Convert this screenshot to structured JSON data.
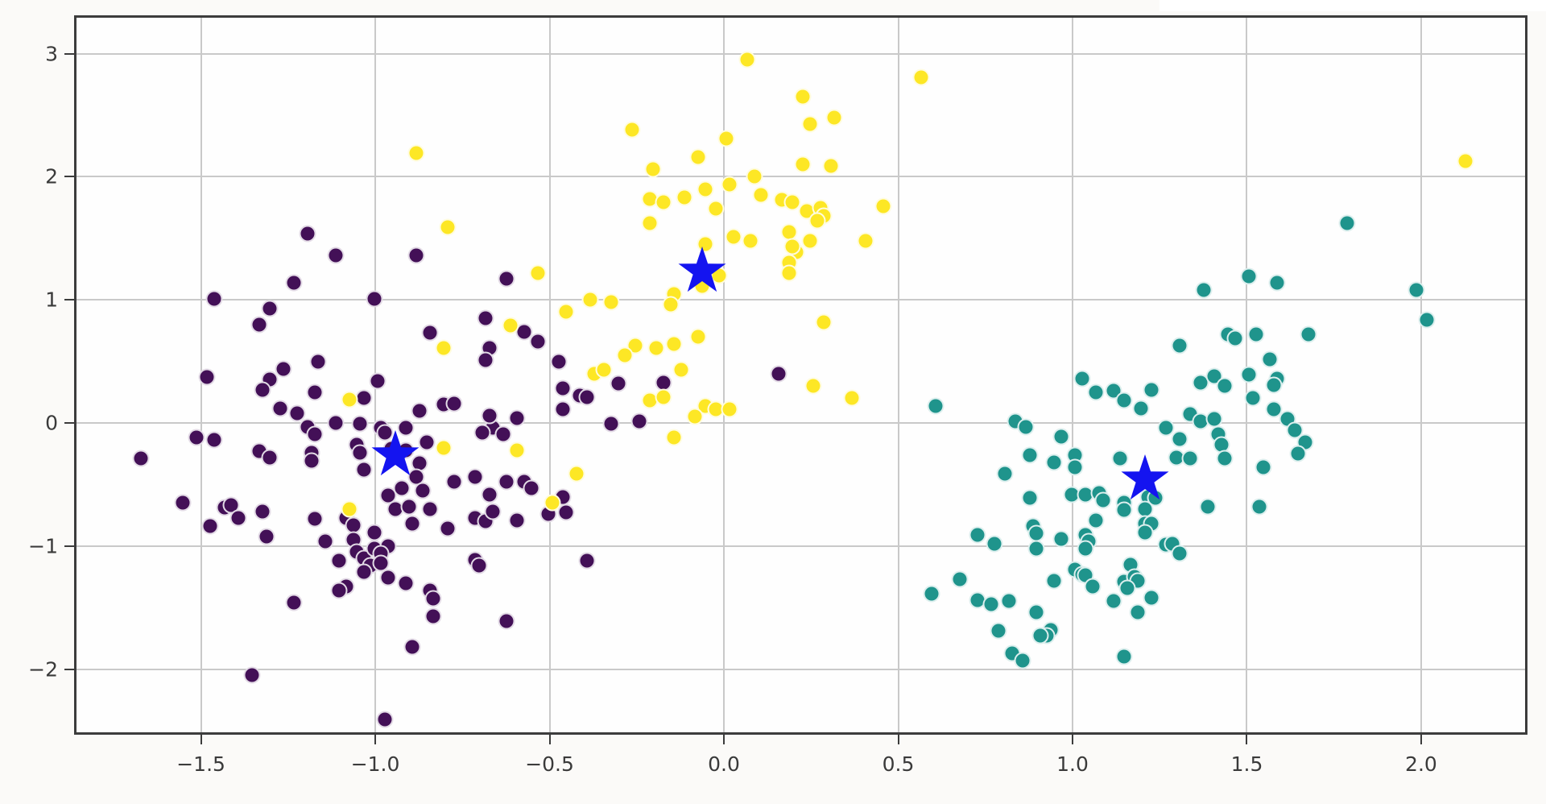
{
  "chart_data": {
    "type": "scatter",
    "title": "",
    "xlabel": "",
    "ylabel": "",
    "grid": true,
    "xlim": [
      -1.864,
      2.305
    ],
    "ylim": [
      -2.533,
      3.312
    ],
    "x_ticks": [
      -1.5,
      -1.0,
      -0.5,
      0.0,
      0.5,
      1.0,
      1.5,
      2.0
    ],
    "x_tick_labels": [
      "−1.5",
      "−1.0",
      "−0.5",
      "0.0",
      "0.5",
      "1.0",
      "1.5",
      "2.0"
    ],
    "y_ticks": [
      -2,
      -1,
      0,
      1,
      2,
      3
    ],
    "y_tick_labels": [
      "−2",
      "−1",
      "0",
      "1",
      "2",
      "3"
    ],
    "grid_color": "#c9c9c9",
    "spine_color": "#3c3c3c",
    "tick_label_color": "#3a3a3a",
    "series": [
      {
        "name": "cluster-0-purple",
        "color": "#431057",
        "points": [
          [
            -1.2,
            1.56
          ],
          [
            -1.12,
            1.38
          ],
          [
            -0.89,
            1.38
          ],
          [
            -1.24,
            1.16
          ],
          [
            -0.63,
            1.19
          ],
          [
            -1.47,
            1.03
          ],
          [
            -1.01,
            1.03
          ],
          [
            -1.31,
            0.95
          ],
          [
            -1.34,
            0.82
          ],
          [
            -0.85,
            0.75
          ],
          [
            -0.69,
            0.87
          ],
          [
            -0.58,
            0.76
          ],
          [
            -0.68,
            0.63
          ],
          [
            -0.69,
            0.53
          ],
          [
            -0.54,
            0.68
          ],
          [
            -1.17,
            0.52
          ],
          [
            -1.27,
            0.46
          ],
          [
            -1.31,
            0.37
          ],
          [
            -1.49,
            0.39
          ],
          [
            -1.33,
            0.29
          ],
          [
            -1.18,
            0.27
          ],
          [
            -1.0,
            0.36
          ],
          [
            -1.04,
            0.22
          ],
          [
            -1.28,
            0.14
          ],
          [
            -1.23,
            0.1
          ],
          [
            -1.12,
            0.02
          ],
          [
            -1.2,
            -0.01
          ],
          [
            -1.18,
            -0.07
          ],
          [
            -0.99,
            -0.02
          ],
          [
            -0.98,
            -0.06
          ],
          [
            -0.92,
            -0.02
          ],
          [
            -0.88,
            0.12
          ],
          [
            -0.81,
            0.17
          ],
          [
            -0.78,
            0.18
          ],
          [
            -0.6,
            0.06
          ],
          [
            -0.67,
            -0.02
          ],
          [
            -0.7,
            -0.06
          ],
          [
            -0.64,
            -0.07
          ],
          [
            -1.52,
            -0.1
          ],
          [
            -1.47,
            -0.12
          ],
          [
            -1.34,
            -0.21
          ],
          [
            -1.31,
            -0.26
          ],
          [
            -1.19,
            -0.22
          ],
          [
            -1.19,
            -0.29
          ],
          [
            -1.06,
            -0.16
          ],
          [
            -1.05,
            -0.22
          ],
          [
            -0.96,
            -0.19
          ],
          [
            -0.92,
            -0.2
          ],
          [
            -1.68,
            -0.27
          ],
          [
            -1.05,
            0.01
          ],
          [
            -0.68,
            0.08
          ],
          [
            -0.86,
            -0.14
          ],
          [
            -0.88,
            -0.31
          ],
          [
            -0.89,
            -0.42
          ],
          [
            -1.04,
            -0.36
          ],
          [
            -0.97,
            -0.57
          ],
          [
            -0.93,
            -0.51
          ],
          [
            -0.58,
            -0.46
          ],
          [
            -0.56,
            -0.51
          ],
          [
            -0.78,
            -0.46
          ],
          [
            -0.72,
            -0.42
          ],
          [
            -0.63,
            -0.46
          ],
          [
            -0.68,
            -0.56
          ],
          [
            -0.87,
            -0.53
          ],
          [
            -0.47,
            0.3
          ],
          [
            -0.47,
            0.13
          ],
          [
            -0.48,
            0.52
          ],
          [
            -0.42,
            0.24
          ],
          [
            -0.4,
            0.23
          ],
          [
            -0.31,
            0.34
          ],
          [
            -0.18,
            0.35
          ],
          [
            -0.33,
            0.01
          ],
          [
            -0.25,
            0.03
          ],
          [
            -0.47,
            -0.58
          ],
          [
            0.15,
            0.42
          ],
          [
            -0.46,
            -0.71
          ],
          [
            -0.4,
            -1.1
          ],
          [
            -1.56,
            -0.63
          ],
          [
            -1.48,
            -0.82
          ],
          [
            -1.44,
            -0.67
          ],
          [
            -1.42,
            -0.65
          ],
          [
            -1.4,
            -0.75
          ],
          [
            -1.33,
            -0.7
          ],
          [
            -1.32,
            -0.9
          ],
          [
            -1.18,
            -0.76
          ],
          [
            -1.15,
            -0.94
          ],
          [
            -1.09,
            -0.75
          ],
          [
            -1.07,
            -0.81
          ],
          [
            -1.07,
            -0.93
          ],
          [
            -1.06,
            -1.03
          ],
          [
            -1.04,
            -1.08
          ],
          [
            -1.02,
            -1.14
          ],
          [
            -1.04,
            -1.19
          ],
          [
            -1.01,
            -0.87
          ],
          [
            -1.01,
            -1.0
          ],
          [
            -0.95,
            -0.68
          ],
          [
            -0.91,
            -0.66
          ],
          [
            -0.85,
            -0.68
          ],
          [
            -0.97,
            -0.98
          ],
          [
            -0.99,
            -1.04
          ],
          [
            -0.99,
            -1.12
          ],
          [
            -1.11,
            -1.1
          ],
          [
            -1.09,
            -1.31
          ],
          [
            -1.11,
            -1.34
          ],
          [
            -1.24,
            -1.44
          ],
          [
            -0.97,
            -1.24
          ],
          [
            -0.92,
            -1.28
          ],
          [
            -0.9,
            -1.8
          ],
          [
            -0.85,
            -1.34
          ],
          [
            -0.84,
            -1.41
          ],
          [
            -0.84,
            -1.55
          ],
          [
            -0.9,
            -0.8
          ],
          [
            -0.8,
            -0.84
          ],
          [
            -0.72,
            -0.75
          ],
          [
            -0.69,
            -0.78
          ],
          [
            -0.67,
            -0.7
          ],
          [
            -0.6,
            -0.77
          ],
          [
            -0.51,
            -0.72
          ],
          [
            -0.72,
            -1.09
          ],
          [
            -0.71,
            -1.14
          ],
          [
            -0.63,
            -1.59
          ],
          [
            -1.36,
            -2.03
          ],
          [
            -0.98,
            -2.39
          ]
        ]
      },
      {
        "name": "cluster-1-yellow",
        "color": "#fde725",
        "points": [
          [
            0.06,
            2.97
          ],
          [
            0.56,
            2.83
          ],
          [
            0.22,
            2.67
          ],
          [
            0.31,
            2.5
          ],
          [
            0.24,
            2.45
          ],
          [
            -0.27,
            2.4
          ],
          [
            0.0,
            2.33
          ],
          [
            -0.08,
            2.18
          ],
          [
            -0.21,
            2.08
          ],
          [
            0.22,
            2.12
          ],
          [
            0.3,
            2.11
          ],
          [
            0.08,
            2.02
          ],
          [
            0.01,
            1.96
          ],
          [
            -0.06,
            1.92
          ],
          [
            -0.22,
            1.84
          ],
          [
            -0.18,
            1.81
          ],
          [
            -0.12,
            1.85
          ],
          [
            0.1,
            1.87
          ],
          [
            0.16,
            1.83
          ],
          [
            0.19,
            1.81
          ],
          [
            0.23,
            1.74
          ],
          [
            0.27,
            1.77
          ],
          [
            0.28,
            1.7
          ],
          [
            -0.03,
            1.76
          ],
          [
            -0.22,
            1.64
          ],
          [
            0.45,
            1.78
          ],
          [
            0.26,
            1.66
          ],
          [
            0.02,
            1.53
          ],
          [
            0.07,
            1.5
          ],
          [
            0.18,
            1.57
          ],
          [
            0.24,
            1.5
          ],
          [
            0.2,
            1.41
          ],
          [
            0.4,
            1.5
          ],
          [
            -0.06,
            1.47
          ],
          [
            -0.02,
            1.22
          ],
          [
            -0.07,
            1.13
          ],
          [
            0.19,
            1.45
          ],
          [
            0.18,
            1.32
          ],
          [
            -0.15,
            1.07
          ],
          [
            -0.16,
            0.98
          ],
          [
            0.18,
            1.24
          ],
          [
            -0.39,
            1.02
          ],
          [
            -0.33,
            1.0
          ],
          [
            -0.46,
            0.92
          ],
          [
            0.28,
            0.84
          ],
          [
            -0.08,
            0.72
          ],
          [
            -0.26,
            0.65
          ],
          [
            -0.29,
            0.57
          ],
          [
            -0.2,
            0.63
          ],
          [
            -0.15,
            0.66
          ],
          [
            -0.13,
            0.45
          ],
          [
            -0.38,
            0.42
          ],
          [
            -0.35,
            0.45
          ],
          [
            0.25,
            0.32
          ],
          [
            0.36,
            0.22
          ],
          [
            -0.22,
            0.2
          ],
          [
            -0.18,
            0.23
          ],
          [
            -0.06,
            0.16
          ],
          [
            -0.03,
            0.13
          ],
          [
            0.01,
            0.13
          ],
          [
            -0.09,
            0.07
          ],
          [
            -0.15,
            -0.1
          ],
          [
            -0.43,
            -0.39
          ],
          [
            -0.89,
            2.21
          ],
          [
            -0.8,
            1.61
          ],
          [
            -0.54,
            1.24
          ],
          [
            -0.81,
            0.63
          ],
          [
            -0.62,
            0.81
          ],
          [
            -1.08,
            0.21
          ],
          [
            -0.81,
            -0.18
          ],
          [
            -0.6,
            -0.2
          ],
          [
            -0.5,
            -0.63
          ],
          [
            -1.08,
            -0.68
          ],
          [
            2.12,
            2.15
          ]
        ]
      },
      {
        "name": "cluster-2-teal",
        "color": "#1f948c",
        "points": [
          [
            1.78,
            1.64
          ],
          [
            1.5,
            1.21
          ],
          [
            1.58,
            1.16
          ],
          [
            1.37,
            1.1
          ],
          [
            1.98,
            1.1
          ],
          [
            2.01,
            0.86
          ],
          [
            1.44,
            0.74
          ],
          [
            1.46,
            0.71
          ],
          [
            1.52,
            0.74
          ],
          [
            1.67,
            0.74
          ],
          [
            1.3,
            0.65
          ],
          [
            1.56,
            0.54
          ],
          [
            1.02,
            0.38
          ],
          [
            1.06,
            0.27
          ],
          [
            1.11,
            0.28
          ],
          [
            1.14,
            0.2
          ],
          [
            1.19,
            0.14
          ],
          [
            1.22,
            0.29
          ],
          [
            1.36,
            0.35
          ],
          [
            1.4,
            0.4
          ],
          [
            1.43,
            0.32
          ],
          [
            1.5,
            0.41
          ],
          [
            1.51,
            0.22
          ],
          [
            1.58,
            0.38
          ],
          [
            1.57,
            0.33
          ],
          [
            1.57,
            0.13
          ],
          [
            1.33,
            0.09
          ],
          [
            1.36,
            0.03
          ],
          [
            1.4,
            0.05
          ],
          [
            1.61,
            0.05
          ],
          [
            1.63,
            -0.04
          ],
          [
            1.66,
            -0.14
          ],
          [
            1.64,
            -0.23
          ],
          [
            1.41,
            -0.07
          ],
          [
            1.42,
            -0.16
          ],
          [
            1.43,
            -0.27
          ],
          [
            1.3,
            -0.11
          ],
          [
            1.29,
            -0.26
          ],
          [
            1.33,
            -0.27
          ],
          [
            1.26,
            -0.02
          ],
          [
            0.96,
            -0.09
          ],
          [
            0.94,
            -0.3
          ],
          [
            1.0,
            -0.24
          ],
          [
            1.0,
            -0.34
          ],
          [
            1.13,
            -0.27
          ],
          [
            1.54,
            -0.34
          ],
          [
            0.99,
            -0.56
          ],
          [
            1.03,
            -0.56
          ],
          [
            1.07,
            -0.55
          ],
          [
            1.08,
            -0.61
          ],
          [
            1.14,
            -0.63
          ],
          [
            1.21,
            -0.58
          ],
          [
            1.23,
            -0.59
          ],
          [
            1.38,
            -0.66
          ],
          [
            1.53,
            -0.66
          ],
          [
            0.6,
            0.16
          ],
          [
            0.83,
            0.03
          ],
          [
            0.86,
            -0.01
          ],
          [
            0.87,
            -0.24
          ],
          [
            0.8,
            -0.39
          ],
          [
            0.87,
            -0.59
          ],
          [
            1.06,
            -0.77
          ],
          [
            1.14,
            -0.69
          ],
          [
            1.2,
            -0.68
          ],
          [
            1.2,
            -0.8
          ],
          [
            1.22,
            -0.8
          ],
          [
            1.2,
            -0.87
          ],
          [
            0.88,
            -0.82
          ],
          [
            0.89,
            -0.88
          ],
          [
            0.96,
            -0.92
          ],
          [
            1.03,
            -0.89
          ],
          [
            1.04,
            -0.94
          ],
          [
            1.03,
            -1.0
          ],
          [
            1.26,
            -0.97
          ],
          [
            1.28,
            -0.96
          ],
          [
            1.3,
            -1.04
          ],
          [
            1.16,
            -1.13
          ],
          [
            1.0,
            -1.17
          ],
          [
            1.02,
            -1.21
          ],
          [
            1.03,
            -1.22
          ],
          [
            0.94,
            -1.26
          ],
          [
            1.05,
            -1.31
          ],
          [
            1.14,
            -1.27
          ],
          [
            1.17,
            -1.23
          ],
          [
            1.18,
            -1.26
          ],
          [
            1.15,
            -1.32
          ],
          [
            1.11,
            -1.43
          ],
          [
            1.22,
            -1.4
          ],
          [
            1.18,
            -1.52
          ],
          [
            0.93,
            -1.66
          ],
          [
            0.92,
            -1.71
          ],
          [
            1.14,
            -1.88
          ],
          [
            0.72,
            -0.89
          ],
          [
            0.77,
            -0.96
          ],
          [
            0.89,
            -1.0
          ],
          [
            0.67,
            -1.25
          ],
          [
            0.59,
            -1.37
          ],
          [
            0.72,
            -1.42
          ],
          [
            0.76,
            -1.45
          ],
          [
            0.81,
            -1.43
          ],
          [
            0.89,
            -1.52
          ],
          [
            0.78,
            -1.67
          ],
          [
            0.9,
            -1.71
          ],
          [
            0.82,
            -1.85
          ],
          [
            0.85,
            -1.91
          ]
        ]
      }
    ],
    "centroids": {
      "name": "cluster-centroids",
      "color": "#1414f0",
      "marker": "star",
      "points": [
        [
          -0.95,
          -0.24
        ],
        [
          -0.07,
          1.25
        ],
        [
          1.2,
          -0.44
        ]
      ]
    }
  }
}
